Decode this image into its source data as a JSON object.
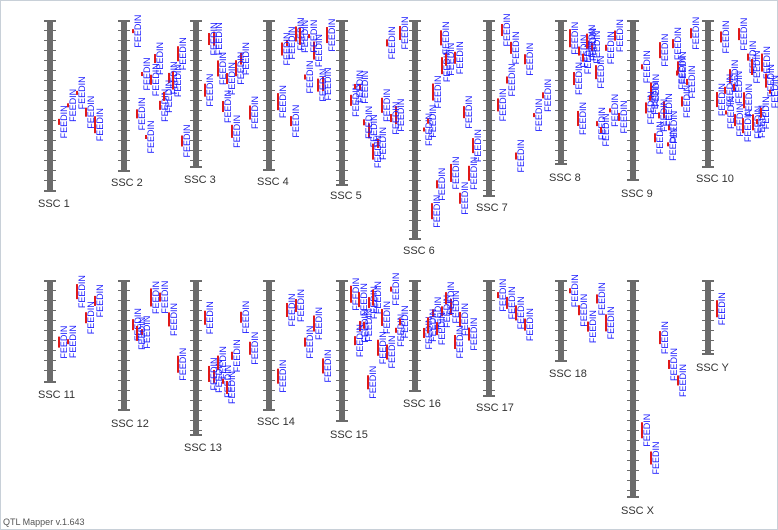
{
  "app": {
    "version_label": "QTL Mapper v.1.643"
  },
  "qtl_trait_label": "FEEDIN",
  "colors": {
    "chromosome": "#6b6b6b",
    "tick": "#ffffff",
    "qtl_bar": "#e01818",
    "qtl_label": "#1a1aff",
    "chrom_label": "#333333",
    "border": "#c8d0d8"
  },
  "chromosomes": [
    {
      "label": "SSC 1",
      "qtl_count": 5
    },
    {
      "label": "SSC 2",
      "qtl_count": 12
    },
    {
      "label": "SSC 3",
      "qtl_count": 10
    },
    {
      "label": "SSC 4",
      "qtl_count": 12
    },
    {
      "label": "SSC 5",
      "qtl_count": 12
    },
    {
      "label": "SSC 6",
      "qtl_count": 14
    },
    {
      "label": "SSC 7",
      "qtl_count": 8
    },
    {
      "label": "SSC 8",
      "qtl_count": 15
    },
    {
      "label": "SSC 9",
      "qtl_count": 16
    },
    {
      "label": "SSC 10",
      "qtl_count": 18
    },
    {
      "label": "SSC 11",
      "qtl_count": 5
    },
    {
      "label": "SSC 12",
      "qtl_count": 7
    },
    {
      "label": "SSC 13",
      "qtl_count": 9
    },
    {
      "label": "SSC 14",
      "qtl_count": 6
    },
    {
      "label": "SSC 15",
      "qtl_count": 14
    },
    {
      "label": "SSC 16",
      "qtl_count": 10
    },
    {
      "label": "SSC 17",
      "qtl_count": 4
    },
    {
      "label": "SSC 18",
      "qtl_count": 5
    },
    {
      "label": "SSC X",
      "qtl_count": 5
    },
    {
      "label": "SSC Y",
      "qtl_count": 1
    }
  ]
}
